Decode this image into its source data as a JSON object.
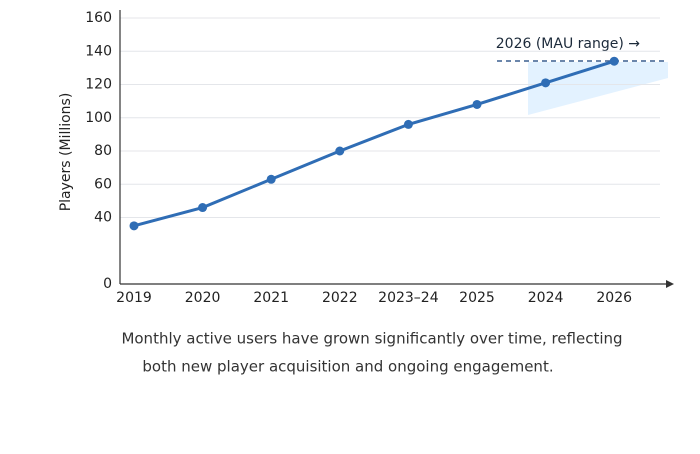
{
  "chart_data": {
    "type": "line",
    "y_label": "Players (Millions)",
    "categories": [
      "2019",
      "2020",
      "2021",
      "2022",
      "2023–24",
      "2025",
      "2024",
      "2026"
    ],
    "values": [
      35,
      46,
      63,
      80,
      96,
      108,
      121,
      134
    ],
    "color": "#2f6db5",
    "ylim": [
      0,
      160
    ],
    "yticks": [
      0,
      40,
      60,
      80,
      100,
      120,
      140,
      160
    ],
    "grid": true,
    "annotation": "2026 (MAU range) →",
    "caption": [
      "Monthly active users have grown significantly over time, reflecting",
      "both new player acquisition and ongoing engagement."
    ]
  }
}
